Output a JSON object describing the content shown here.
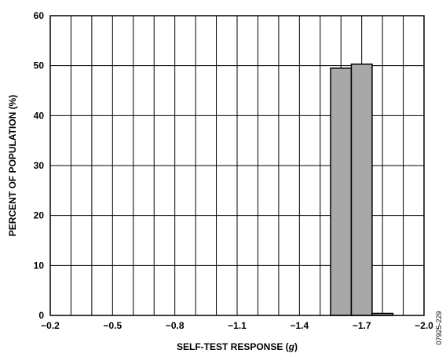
{
  "chart_data": {
    "type": "bar",
    "xlabel_prefix": "SELF-TEST RESPONSE (",
    "xlabel_unit": "g",
    "xlabel_suffix": ")",
    "ylabel": "PERCENT OF POPULATION (%)",
    "ylim": [
      0,
      60
    ],
    "yticks": [
      "0",
      "10",
      "20",
      "30",
      "40",
      "50",
      "60"
    ],
    "xticks": [
      "−0.2",
      "−0.5",
      "−0.8",
      "−1.1",
      "−1.4",
      "−1.7",
      "−2.0"
    ],
    "xlim": [
      -0.2,
      -2.0
    ],
    "bin_width": -0.1,
    "grid": true,
    "bars": [
      {
        "bin_start": -1.55,
        "bin_end": -1.65,
        "value": 49.5
      },
      {
        "bin_start": -1.65,
        "bin_end": -1.75,
        "value": 50.3
      },
      {
        "bin_start": -1.75,
        "bin_end": -1.85,
        "value": 0.4
      }
    ],
    "bar_color": "#a8a8a8",
    "figure_id": "07925-229"
  }
}
